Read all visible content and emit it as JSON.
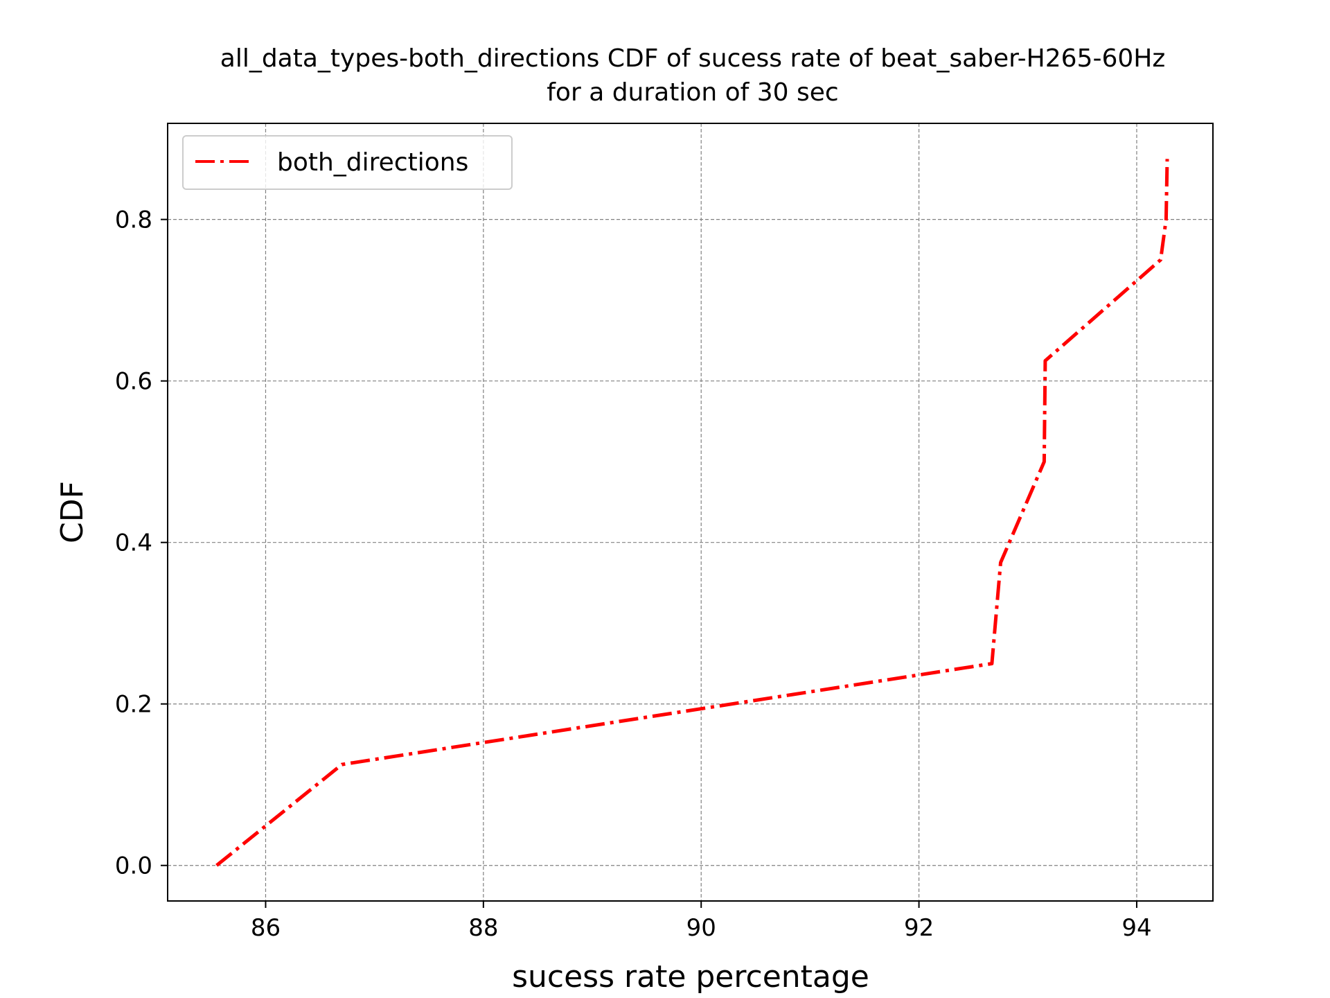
{
  "chart_data": {
    "type": "line",
    "title": "all_data_types-both_directions CDF of sucess rate of beat_saber-H265-60Hz",
    "subtitle": "for a duration of 30 sec",
    "xlabel": "sucess rate percentage",
    "ylabel": "CDF",
    "xlim": [
      85.1,
      94.7
    ],
    "ylim": [
      -0.044,
      0.919
    ],
    "xticks": [
      86,
      88,
      90,
      92,
      94
    ],
    "xtick_labels": [
      "86",
      "88",
      "90",
      "92",
      "94"
    ],
    "yticks": [
      0.0,
      0.2,
      0.4,
      0.6,
      0.8
    ],
    "ytick_labels": [
      "0.0",
      "0.2",
      "0.4",
      "0.6",
      "0.8"
    ],
    "grid": true,
    "legend_position": "top-left",
    "series": [
      {
        "name": "both_directions",
        "color": "#ff0000",
        "linestyle": "dashdot",
        "x": [
          85.55,
          86.7,
          92.67,
          92.75,
          93.15,
          93.16,
          94.22,
          94.27,
          94.28
        ],
        "y": [
          0.0,
          0.125,
          0.25,
          0.375,
          0.5,
          0.625,
          0.75,
          0.8,
          0.875
        ]
      }
    ]
  }
}
